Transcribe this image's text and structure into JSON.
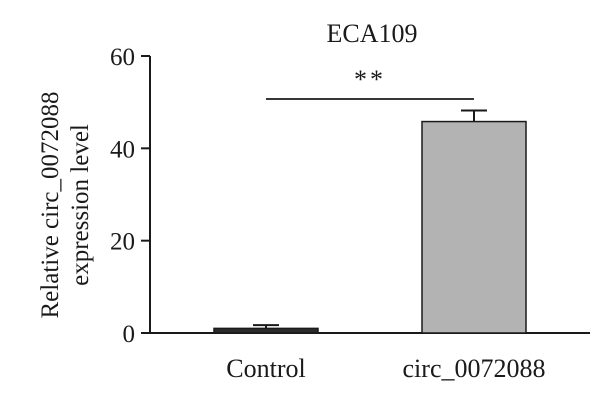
{
  "chart_data": {
    "type": "bar",
    "title": "ECA109",
    "ylabel_line1": "Relative circ_0072088",
    "ylabel_line2": "expression level",
    "xlabel": "",
    "categories": [
      "Control",
      "circ_0072088"
    ],
    "values": [
      1.0,
      45.8
    ],
    "errors": [
      0.7,
      2.4
    ],
    "ylim": [
      0,
      60
    ],
    "yticks": [
      0,
      20,
      40,
      60
    ],
    "significance": {
      "label": "**",
      "between": [
        "Control",
        "circ_0072088"
      ]
    },
    "bar_colors": [
      "#2b2b2b",
      "#b3b3b3"
    ],
    "grid": false,
    "legend": "none"
  }
}
